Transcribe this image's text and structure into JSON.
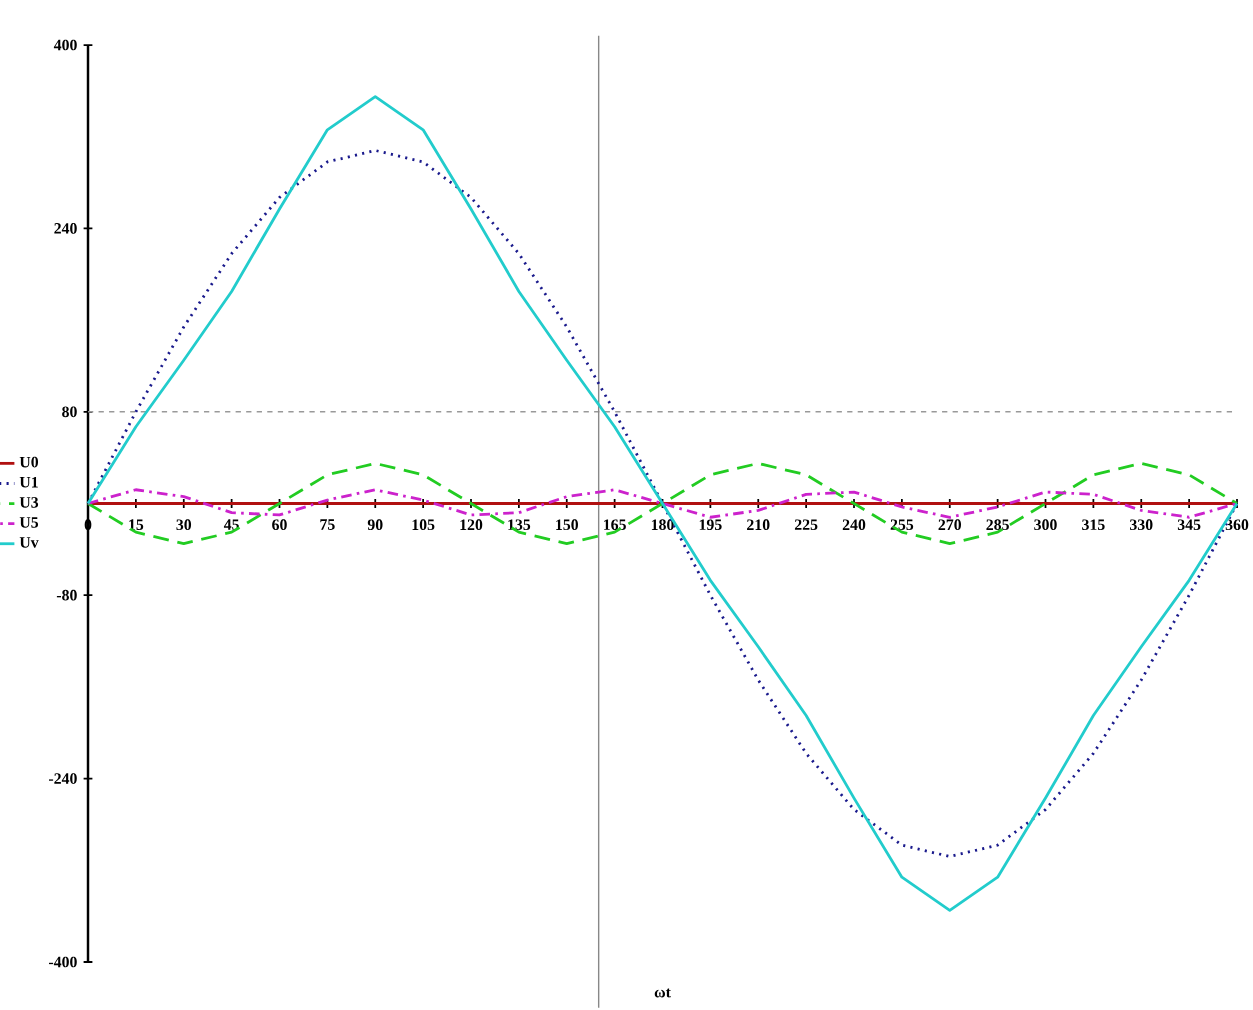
{
  "chart_data": {
    "type": "line",
    "xlabel": "ωt",
    "x": [
      0,
      15,
      30,
      45,
      60,
      75,
      90,
      105,
      120,
      135,
      150,
      165,
      180,
      195,
      210,
      225,
      240,
      255,
      270,
      285,
      300,
      315,
      330,
      345,
      360
    ],
    "series": [
      {
        "name": "U0",
        "color": "#b01010",
        "line_style": "solid",
        "values": [
          0,
          0,
          0,
          0,
          0,
          0,
          0,
          0,
          0,
          0,
          0,
          0,
          0,
          0,
          0,
          0,
          0,
          0,
          0,
          0,
          0,
          0,
          0,
          0,
          0
        ]
      },
      {
        "name": "U1",
        "color": "#1a1a8c",
        "line_style": "dotted",
        "values": [
          0,
          80,
          154,
          218,
          267,
          298,
          308,
          298,
          267,
          218,
          154,
          80,
          0,
          -80,
          -154,
          -218,
          -267,
          -298,
          -308,
          -298,
          -267,
          -218,
          -154,
          -80,
          0
        ]
      },
      {
        "name": "U3",
        "color": "#22cc22",
        "line_style": "dashed",
        "values": [
          0,
          -25,
          -35,
          -25,
          0,
          25,
          35,
          25,
          0,
          -25,
          -35,
          -25,
          0,
          25,
          35,
          25,
          0,
          -25,
          -35,
          -25,
          0,
          25,
          35,
          25,
          0
        ]
      },
      {
        "name": "U5",
        "color": "#cc22cc",
        "line_style": "dashdot",
        "values": [
          0,
          12,
          6,
          -8,
          -10,
          3,
          12,
          3,
          -10,
          -8,
          6,
          12,
          0,
          -12,
          -6,
          8,
          10,
          -3,
          -12,
          -3,
          10,
          8,
          -6,
          -12,
          0
        ]
      },
      {
        "name": "Uv",
        "color": "#22cccc",
        "line_style": "solid",
        "values": [
          0,
          67,
          125,
          185,
          257,
          326,
          355,
          326,
          257,
          185,
          125,
          67,
          0,
          -67,
          -125,
          -185,
          -257,
          -326,
          -355,
          -326,
          -257,
          -185,
          -125,
          -67,
          0
        ]
      }
    ],
    "xlim": [
      0,
      360
    ],
    "xticks": [
      0,
      15,
      30,
      45,
      60,
      75,
      90,
      105,
      120,
      135,
      150,
      165,
      180,
      195,
      210,
      225,
      240,
      255,
      270,
      285,
      300,
      315,
      330,
      345,
      360
    ],
    "ylim": [
      -400,
      400
    ],
    "yticks": [
      -400,
      -240,
      -80,
      80,
      240,
      400
    ],
    "ref_lines": [
      {
        "axis": "y",
        "value": 80,
        "color": "#999999",
        "line_style": "dashed"
      },
      {
        "axis": "x",
        "value": 160,
        "color": "#888888",
        "line_style": "solid"
      }
    ],
    "legend": "left",
    "marker": "none",
    "grid": false
  }
}
